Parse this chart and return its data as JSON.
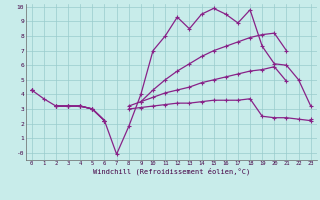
{
  "x": [
    0,
    1,
    2,
    3,
    4,
    5,
    6,
    7,
    8,
    9,
    10,
    11,
    12,
    13,
    14,
    15,
    16,
    17,
    18,
    19,
    20,
    21,
    22,
    23
  ],
  "line_zigzag": [
    4.3,
    3.7,
    3.2,
    3.2,
    3.2,
    3.0,
    2.2,
    -0.1,
    1.8,
    4.0,
    7.0,
    8.0,
    9.3,
    8.5,
    9.5,
    9.9,
    9.5,
    8.9,
    9.8,
    7.3,
    6.1,
    6.0,
    5.0,
    3.2
  ],
  "line_upper": [
    4.3,
    null,
    3.2,
    3.2,
    3.2,
    3.0,
    2.2,
    null,
    null,
    3.5,
    4.3,
    5.0,
    5.6,
    6.1,
    6.6,
    7.0,
    7.3,
    7.6,
    7.9,
    8.1,
    8.2,
    7.0,
    null,
    null
  ],
  "line_mid": [
    4.3,
    null,
    3.2,
    3.2,
    3.2,
    3.0,
    2.2,
    null,
    3.2,
    3.5,
    3.8,
    4.1,
    4.3,
    4.5,
    4.8,
    5.0,
    5.2,
    5.4,
    5.6,
    5.7,
    5.9,
    4.9,
    null,
    2.3
  ],
  "line_low": [
    4.3,
    null,
    3.2,
    3.2,
    3.2,
    3.0,
    2.2,
    null,
    3.0,
    3.1,
    3.2,
    3.3,
    3.4,
    3.4,
    3.5,
    3.6,
    3.6,
    3.6,
    3.7,
    2.5,
    2.4,
    2.4,
    2.3,
    2.2
  ],
  "color": "#882288",
  "bg_color": "#c8ecea",
  "grid_color": "#99cccc",
  "xlabel": "Windchill (Refroidissement éolien,°C)",
  "xlim": [
    -0.5,
    23.5
  ],
  "ylim": [
    -0.5,
    10.2
  ],
  "yticks": [
    0,
    1,
    2,
    3,
    4,
    5,
    6,
    7,
    8,
    9,
    10
  ],
  "ytick_labels": [
    "-0",
    "1",
    "2",
    "3",
    "4",
    "5",
    "6",
    "7",
    "8",
    "9",
    "10"
  ],
  "xticks": [
    0,
    1,
    2,
    3,
    4,
    5,
    6,
    7,
    8,
    9,
    10,
    11,
    12,
    13,
    14,
    15,
    16,
    17,
    18,
    19,
    20,
    21,
    22,
    23
  ],
  "xtick_labels": [
    "0",
    "1",
    "2",
    "3",
    "4",
    "5",
    "6",
    "7",
    "8",
    "9",
    "10",
    "11",
    "12",
    "13",
    "14",
    "15",
    "16",
    "17",
    "18",
    "19",
    "20",
    "21",
    "22",
    "23"
  ]
}
